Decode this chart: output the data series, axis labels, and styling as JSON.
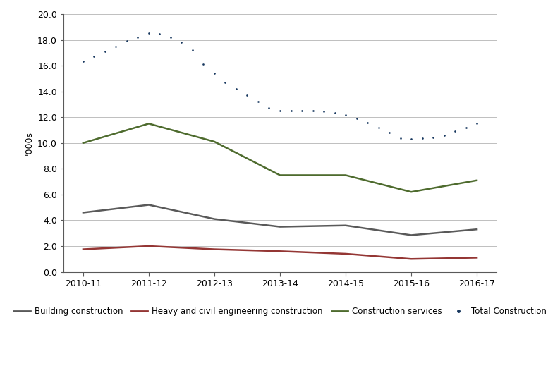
{
  "years": [
    "2010-11",
    "2011-12",
    "2012-13",
    "2013-14",
    "2014-15",
    "2015-16",
    "2016-17"
  ],
  "building_construction": [
    4.6,
    5.2,
    4.1,
    3.5,
    3.6,
    2.85,
    3.3
  ],
  "heavy_civil": [
    1.75,
    2.0,
    1.75,
    1.6,
    1.4,
    1.0,
    1.1
  ],
  "construction_services": [
    10.0,
    11.5,
    10.1,
    7.5,
    7.5,
    6.2,
    7.1
  ],
  "total_construction_dense": [
    16.35,
    16.7,
    17.1,
    17.5,
    17.9,
    18.2,
    18.5,
    18.45,
    18.2,
    17.8,
    17.2,
    16.1,
    15.4,
    14.7,
    14.2,
    13.7,
    13.2,
    12.75,
    12.5,
    12.5,
    12.5,
    12.5,
    12.45,
    12.35,
    12.2,
    11.9,
    11.6,
    11.2,
    10.8,
    10.35,
    10.3,
    10.35,
    10.4,
    10.6,
    10.9,
    11.2,
    11.5
  ],
  "building_color": "#595959",
  "heavy_color": "#943634",
  "services_color": "#4e6b2e",
  "total_color": "#17375e",
  "ylabel": "'000s",
  "ylim": [
    0.0,
    20.0
  ],
  "yticks": [
    0.0,
    2.0,
    4.0,
    6.0,
    8.0,
    10.0,
    12.0,
    14.0,
    16.0,
    18.0,
    20.0
  ],
  "grid_color": "#bfbfbf",
  "spine_color": "#595959"
}
